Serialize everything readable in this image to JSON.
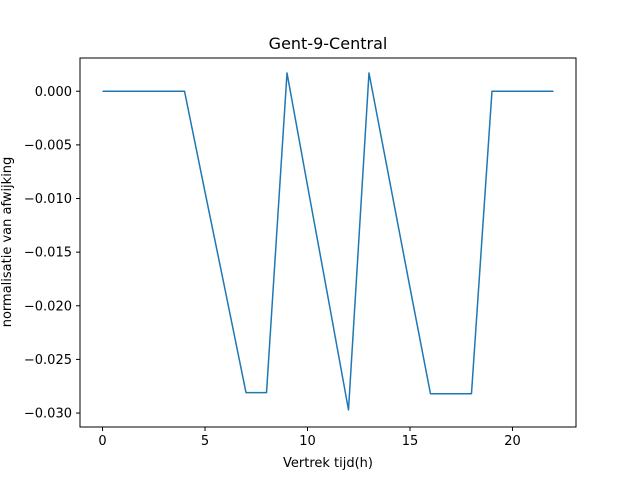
{
  "chart_data": {
    "type": "line",
    "title": "Gent-9-Central",
    "xlabel": "Vertrek tijd(h)",
    "ylabel": "normalisatie van afwijking",
    "xlim": [
      -1.1,
      23.1
    ],
    "ylim": [
      -0.0313,
      0.0031
    ],
    "xticks": [
      0,
      5,
      10,
      15,
      20
    ],
    "xtick_labels": [
      "0",
      "5",
      "10",
      "15",
      "20"
    ],
    "yticks": [
      0.0,
      -0.005,
      -0.01,
      -0.015,
      -0.02,
      -0.025,
      -0.03
    ],
    "ytick_labels": [
      "0.000",
      "−0.005",
      "−0.010",
      "−0.015",
      "−0.020",
      "−0.025",
      "−0.030"
    ],
    "grid": false,
    "series": [
      {
        "color": "#1f77b4",
        "x": [
          0,
          1,
          2,
          3,
          4,
          5,
          6,
          7,
          8,
          9,
          10,
          11,
          12,
          13,
          14,
          15,
          16,
          17,
          18,
          19,
          20,
          21,
          22
        ],
        "values": [
          0,
          0,
          0,
          0,
          0,
          -0.0094,
          -0.0187,
          -0.0281,
          -0.0281,
          0.0017,
          -0.0088,
          -0.0192,
          -0.0297,
          0.0017,
          -0.0083,
          -0.0183,
          -0.0282,
          -0.0282,
          -0.0282,
          0,
          0,
          0,
          0
        ]
      }
    ]
  }
}
